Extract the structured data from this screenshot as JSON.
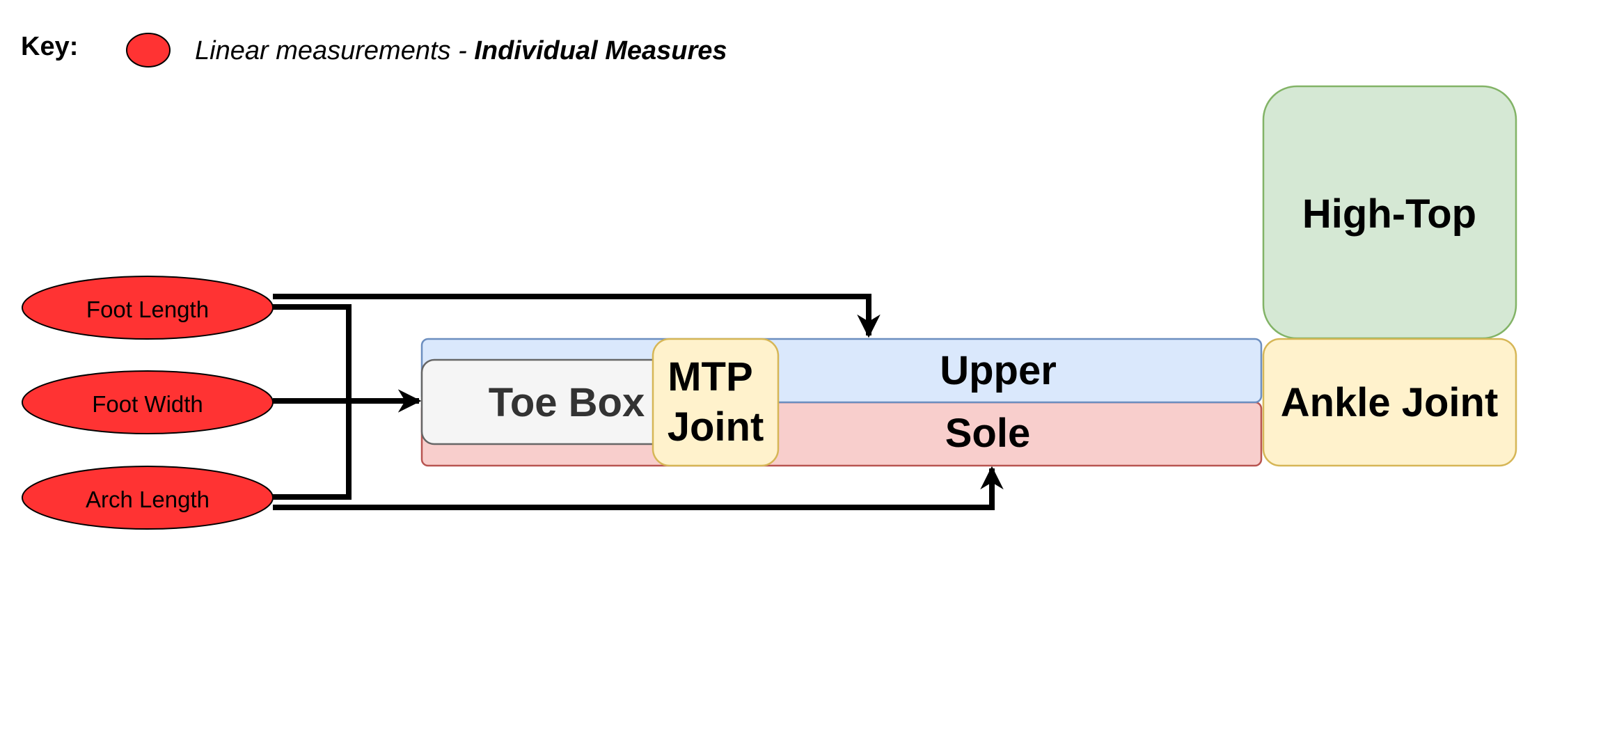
{
  "key": {
    "label": "Key:",
    "text_italic": "Linear measurements - ",
    "text_bold_italic": "Individual Measures",
    "swatch_color": "#ff3333"
  },
  "measures": [
    {
      "label": "Foot Length"
    },
    {
      "label": "Foot Width"
    },
    {
      "label": "Arch Length"
    }
  ],
  "blocks": {
    "upper": {
      "label": "Upper",
      "fill": "#dae8fc",
      "stroke": "#6c8ebf"
    },
    "sole": {
      "label": "Sole",
      "fill": "#f8cecc",
      "stroke": "#b85450"
    },
    "toe_box": {
      "label": "Toe Box",
      "fill": "#f5f5f5",
      "stroke": "#666666"
    },
    "mtp_joint": {
      "label_line1": "MTP",
      "label_line2": "Joint",
      "fill": "#fff2cc",
      "stroke": "#d6b656"
    },
    "ankle_joint": {
      "label": "Ankle Joint",
      "fill": "#fff2cc",
      "stroke": "#d6b656"
    },
    "high_top": {
      "label": "High-Top",
      "fill": "#d5e8d4",
      "stroke": "#82b366"
    }
  }
}
